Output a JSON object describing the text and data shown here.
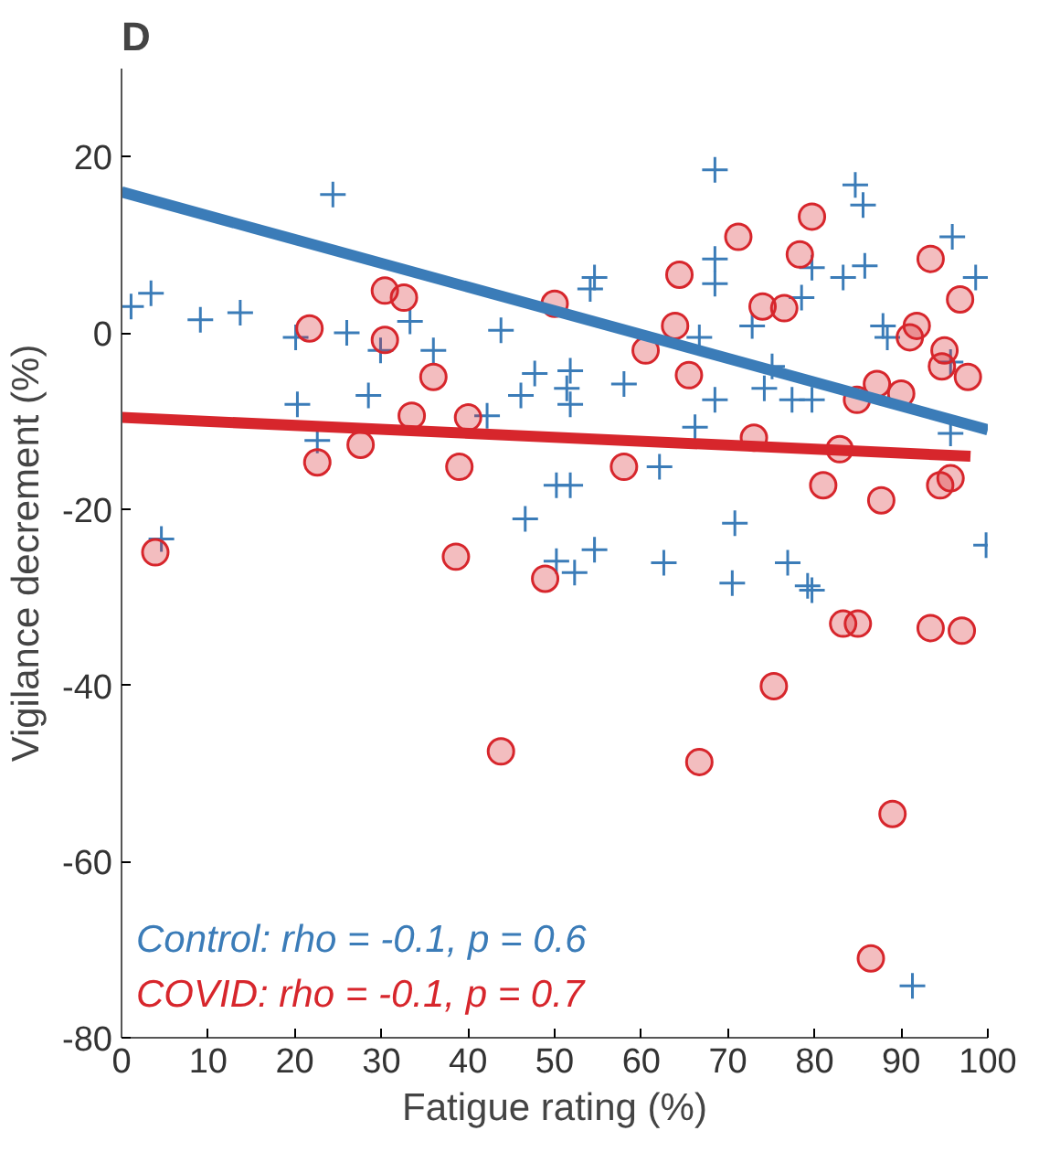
{
  "chart_data": {
    "type": "scatter",
    "title": "D",
    "xlabel": "Fatigue rating (%)",
    "ylabel": "Vigilance decrement (%)",
    "xlim": [
      0,
      100
    ],
    "ylim": [
      -80,
      30
    ],
    "xticks": [
      0,
      10,
      20,
      30,
      40,
      50,
      60,
      70,
      80,
      90,
      100
    ],
    "yticks": [
      -80,
      -60,
      -40,
      -20,
      0,
      20
    ],
    "grid": false,
    "annotations": [
      "Control: rho = -0.1, p = 0.6",
      "COVID: rho = -0.1, p = 0.7"
    ],
    "series": [
      {
        "color": "#3b7cb8",
        "marker": "cross",
        "x": [
          1.1,
          3.4,
          4.6,
          9.1,
          13.7,
          24.4,
          20.1,
          26,
          33.3,
          29.9,
          36,
          20.3,
          28.5,
          22.6,
          42.2,
          43.8,
          47.7,
          46.1,
          46.6,
          50.2,
          50.2,
          68.5,
          84.7,
          85.6,
          95.9,
          98.6,
          68.5,
          68.5,
          79.7,
          83.3,
          85.8,
          54.6,
          54.1,
          78.5,
          72.8,
          66.7,
          87.9,
          88.4,
          51.8,
          51.4,
          51.8,
          58,
          68.5,
          75.1,
          74.2,
          77.4,
          79.7,
          66.2,
          95.7,
          95.7,
          51.8,
          62.1,
          70.8,
          54.6,
          52.3,
          62.6,
          70.5,
          76.9,
          79.2,
          99.8,
          79.7,
          91.3
        ],
        "values": [
          3,
          4.5,
          -23.4,
          1.5,
          2.3,
          15.7,
          -0.5,
          0,
          1.3,
          -2,
          -2,
          -8.1,
          -7.1,
          -12.2,
          -9.4,
          0.3,
          -4.6,
          -7.1,
          -21.1,
          -17.3,
          -25.9,
          18.5,
          16.8,
          14.5,
          10.9,
          6.3,
          8.4,
          5.6,
          7.4,
          6.3,
          7.6,
          6.3,
          5,
          4,
          0.8,
          -0.5,
          0.8,
          -0.5,
          -4.3,
          -6.3,
          -8.1,
          -5.8,
          -7.6,
          -3.8,
          -6.3,
          -7.6,
          -7.6,
          -10.7,
          -3.3,
          -11.4,
          -17.3,
          -15.2,
          -21.6,
          -24.6,
          -27.2,
          -26.1,
          -28.4,
          -26.1,
          -28.7,
          -24.1,
          -29.2,
          -74.1
        ]
      },
      {
        "color": "#d7262c",
        "marker": "circle",
        "x": [
          3.9,
          21.7,
          22.6,
          30.4,
          32.6,
          30.4,
          36,
          27.6,
          33.5,
          40,
          39,
          38.6,
          48.9,
          50,
          64.4,
          71.2,
          79.7,
          78.3,
          74,
          76.5,
          63.9,
          60.5,
          65.5,
          58,
          73,
          82.9,
          81,
          87.7,
          87.2,
          90,
          84.9,
          93.4,
          96.8,
          91.8,
          91,
          95,
          94.7,
          97.7,
          95.7,
          94.5,
          83.3,
          85,
          93.4,
          97,
          75.3,
          43.8,
          66.7,
          89,
          86.5
        ],
        "values": [
          -24.9,
          0.5,
          -14.7,
          4.8,
          4,
          -0.8,
          -5,
          -12.7,
          -9.4,
          -9.6,
          -15.2,
          -25.4,
          -27.9,
          3.3,
          6.6,
          10.9,
          13.2,
          8.9,
          3,
          2.8,
          0.8,
          -2,
          -4.8,
          -15.2,
          -11.9,
          -13.2,
          -17.3,
          -19,
          -5.8,
          -6.9,
          -7.6,
          8.4,
          3.8,
          0.8,
          -0.5,
          -2,
          -3.8,
          -5,
          -16.5,
          -17.3,
          -33,
          -33,
          -33.5,
          -33.8,
          -40.1,
          -47.5,
          -48.7,
          -54.6,
          -71
        ]
      },
      {
        "type": "line",
        "color": "#3b7cb8",
        "x": [
          0,
          100
        ],
        "values": [
          16,
          -11
        ]
      },
      {
        "type": "line",
        "color": "#d7262c",
        "x": [
          0,
          98
        ],
        "values": [
          -9.6,
          -14
        ]
      }
    ]
  }
}
